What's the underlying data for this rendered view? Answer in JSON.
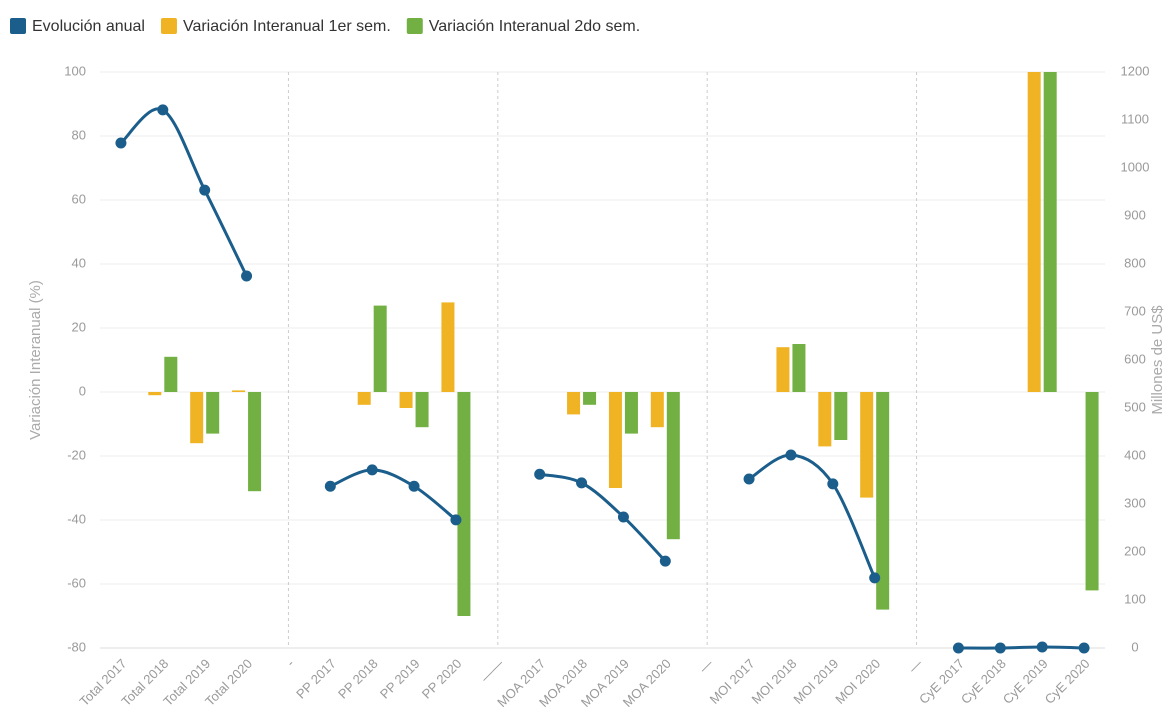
{
  "chart_data": {
    "type": "bar_line",
    "y_label": "Variación Interanual (%)",
    "y2_label": "Millones de US$",
    "categories": [
      "Total 2017",
      "Total 2018",
      "Total 2019",
      "Total 2020",
      "-",
      "PP 2017",
      "PP 2018",
      "PP 2019",
      "PP 2020",
      "——",
      "MOA 2017",
      "MOA 2018",
      "MOA 2019",
      "MOA 2020",
      "—",
      "MOI 2017",
      "MOI 2018",
      "MOI 2019",
      "MOI 2020",
      "—",
      "CyE 2017",
      "CyE 2018",
      "CyE 2019",
      "CyE 2020"
    ],
    "separators": [
      4,
      9,
      14,
      19
    ],
    "series": [
      {
        "name": "Evolución anual",
        "color": "#1b5e8c",
        "kind": "line",
        "axis": "y2",
        "values": [
          1052,
          1121,
          954,
          775,
          null,
          337,
          371,
          337,
          267,
          null,
          362,
          344,
          273,
          181,
          null,
          352,
          402,
          342,
          146,
          null,
          0,
          0,
          2,
          0
        ]
      },
      {
        "name": "Variación Interanual 1er sem.",
        "color": "#f0b323",
        "kind": "bar",
        "values": [
          null,
          -1,
          -16,
          0.5,
          null,
          null,
          -4,
          -5,
          28,
          null,
          null,
          -7,
          -30,
          -11,
          null,
          null,
          14,
          -17,
          -33,
          null,
          null,
          null,
          100,
          null
        ]
      },
      {
        "name": "Variación Interanual 2do sem.",
        "color": "#72b043",
        "kind": "bar",
        "values": [
          null,
          11,
          -13,
          -31,
          null,
          null,
          27,
          -11,
          -70,
          null,
          null,
          -4,
          -13,
          -46,
          null,
          null,
          15,
          -15,
          -68,
          null,
          null,
          null,
          100,
          -62
        ]
      }
    ],
    "ylim": [
      -80,
      100
    ],
    "yticks": [
      -80,
      -60,
      -40,
      -20,
      0,
      20,
      40,
      60,
      80,
      100
    ],
    "y2lim": [
      0,
      1200
    ],
    "y2ticks": [
      0,
      100,
      200,
      300,
      400,
      500,
      600,
      700,
      800,
      900,
      1000,
      1100,
      1200
    ],
    "grid": true
  }
}
